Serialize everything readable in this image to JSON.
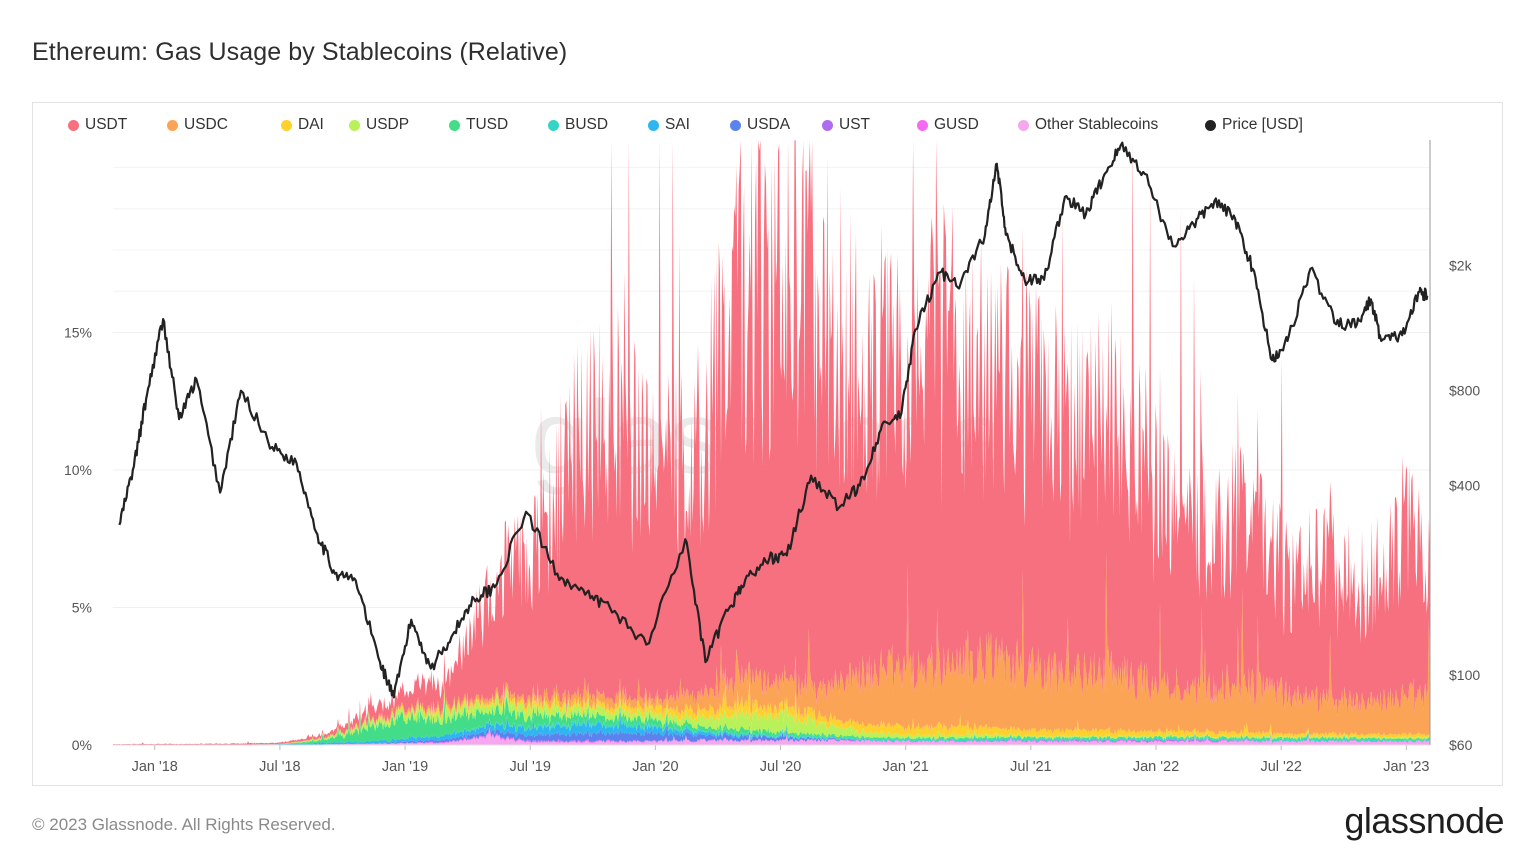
{
  "title": "Ethereum: Gas Usage by Stablecoins (Relative)",
  "footer": "© 2023 Glassnode. All Rights Reserved.",
  "brand": "glassnode",
  "watermark": "glassnode",
  "colors": {
    "USDT": "#f7707f",
    "USDC": "#fba456",
    "DAI": "#ffd12e",
    "USDP": "#b9f15b",
    "TUSD": "#43dd8a",
    "BUSD": "#34d5c4",
    "SAI": "#2eb6f0",
    "USDA": "#5b82ee",
    "UST": "#b06cf0",
    "GUSD": "#f46bf0",
    "Other Stablecoins": "#f6a7ef",
    "Price [USD]": "#222222"
  },
  "chart_data": {
    "type": "area",
    "title": "Ethereum: Gas Usage by Stablecoins (Relative)",
    "legend": [
      "USDT",
      "USDC",
      "DAI",
      "USDP",
      "TUSD",
      "BUSD",
      "SAI",
      "USDA",
      "UST",
      "GUSD",
      "Other Stablecoins",
      "Price [USD]"
    ],
    "legend_position": "top",
    "x_ticks": [
      "Jan '18",
      "Jul '18",
      "Jan '19",
      "Jul '19",
      "Jan '20",
      "Jul '20",
      "Jan '21",
      "Jul '21",
      "Jan '22",
      "Jul '22",
      "Jan '23"
    ],
    "y_left": {
      "ticks": [
        "0%",
        "5%",
        "10%",
        "15%"
      ],
      "values": [
        0,
        5,
        10,
        15
      ],
      "ylim": [
        0,
        22
      ]
    },
    "y_right": {
      "ticks": [
        "$60",
        "$100",
        "$400",
        "$800",
        "$2k"
      ],
      "values": [
        60,
        100,
        400,
        800,
        2000
      ],
      "scale": "log",
      "ylim": [
        60,
        5000
      ]
    },
    "x_range": [
      "2017-11",
      "2023-02"
    ],
    "dates": [
      "Nov '17",
      "Jan '18",
      "Mar '18",
      "May '18",
      "Jul '18",
      "Sep '18",
      "Nov '18",
      "Jan '19",
      "Mar '19",
      "May '19",
      "Jul '19",
      "Sep '19",
      "Nov '19",
      "Jan '20",
      "Mar '20",
      "May '20",
      "Jul '20",
      "Sep '20",
      "Nov '20",
      "Jan '21",
      "Mar '21",
      "May '21",
      "Jul '21",
      "Sep '21",
      "Nov '21",
      "Jan '22",
      "Mar '22",
      "May '22",
      "Jul '22",
      "Sep '22",
      "Nov '22",
      "Jan '23",
      "Feb '23"
    ],
    "series": [
      {
        "name": "USDT",
        "values": [
          0.02,
          0.03,
          0.03,
          0.04,
          0.05,
          0.1,
          0.3,
          0.6,
          1.0,
          3.5,
          5.0,
          9.0,
          10.0,
          8.5,
          9.5,
          13.5,
          15.0,
          14.0,
          11.0,
          10.5,
          11.5,
          10.5,
          9.5,
          9.5,
          9.0,
          7.0,
          6.0,
          6.5,
          4.5,
          5.0,
          4.2,
          6.0,
          3.5
        ]
      },
      {
        "name": "USDC",
        "values": [
          0,
          0,
          0,
          0,
          0.01,
          0.03,
          0.05,
          0.1,
          0.12,
          0.15,
          0.2,
          0.3,
          0.35,
          0.3,
          0.6,
          0.9,
          1.0,
          1.0,
          1.8,
          2.0,
          2.2,
          2.6,
          2.2,
          2.0,
          2.2,
          1.8,
          1.6,
          1.8,
          1.5,
          1.3,
          1.1,
          1.3,
          1.5
        ]
      },
      {
        "name": "DAI",
        "values": [
          0,
          0,
          0,
          0,
          0,
          0,
          0.02,
          0.05,
          0.08,
          0.1,
          0.15,
          0.15,
          0.2,
          0.25,
          0.3,
          0.35,
          0.35,
          0.3,
          0.25,
          0.3,
          0.3,
          0.25,
          0.2,
          0.2,
          0.2,
          0.15,
          0.15,
          0.15,
          0.1,
          0.1,
          0.1,
          0.1,
          0.1
        ]
      },
      {
        "name": "USDP",
        "values": [
          0,
          0,
          0,
          0,
          0,
          0.05,
          0.15,
          0.2,
          0.25,
          0.3,
          0.3,
          0.25,
          0.25,
          0.2,
          0.3,
          0.5,
          0.6,
          0.4,
          0.2,
          0.1,
          0.1,
          0.1,
          0.05,
          0.05,
          0.05,
          0.05,
          0.05,
          0.05,
          0.05,
          0.05,
          0.05,
          0.05,
          0.05
        ]
      },
      {
        "name": "TUSD",
        "values": [
          0,
          0,
          0,
          0,
          0,
          0.1,
          0.4,
          0.8,
          0.6,
          0.5,
          0.4,
          0.3,
          0.25,
          0.2,
          0.15,
          0.15,
          0.1,
          0.08,
          0.05,
          0.05,
          0.05,
          0.05,
          0.05,
          0.05,
          0.05,
          0.05,
          0.05,
          0.05,
          0.05,
          0.05,
          0.05,
          0.05,
          0.05
        ]
      },
      {
        "name": "BUSD",
        "values": [
          0,
          0,
          0,
          0,
          0,
          0,
          0,
          0,
          0,
          0.02,
          0.05,
          0.08,
          0.08,
          0.06,
          0.05,
          0.05,
          0.05,
          0.05,
          0.05,
          0.06,
          0.06,
          0.06,
          0.06,
          0.06,
          0.06,
          0.06,
          0.05,
          0.05,
          0.06,
          0.06,
          0.05,
          0.04,
          0.04
        ]
      },
      {
        "name": "SAI",
        "values": [
          0,
          0,
          0,
          0,
          0.02,
          0.05,
          0.08,
          0.1,
          0.15,
          0.2,
          0.25,
          0.3,
          0.3,
          0.2,
          0.1,
          0.05,
          0.02,
          0.01,
          0,
          0,
          0,
          0,
          0,
          0,
          0,
          0,
          0,
          0,
          0,
          0,
          0,
          0,
          0
        ]
      },
      {
        "name": "USDA",
        "values": [
          0,
          0,
          0,
          0,
          0,
          0,
          0,
          0.05,
          0.1,
          0.15,
          0.2,
          0.25,
          0.3,
          0.25,
          0.2,
          0.15,
          0.1,
          0.05,
          0.02,
          0,
          0,
          0,
          0,
          0,
          0,
          0,
          0,
          0,
          0,
          0,
          0,
          0,
          0
        ]
      },
      {
        "name": "UST",
        "values": [
          0,
          0,
          0,
          0,
          0,
          0,
          0,
          0,
          0,
          0,
          0,
          0,
          0,
          0,
          0,
          0,
          0,
          0,
          0,
          0,
          0.01,
          0.02,
          0.02,
          0.03,
          0.03,
          0.04,
          0.04,
          0.02,
          0,
          0,
          0,
          0,
          0
        ]
      },
      {
        "name": "GUSD",
        "values": [
          0,
          0,
          0,
          0,
          0,
          0,
          0.01,
          0.02,
          0.03,
          0.05,
          0.05,
          0.04,
          0.03,
          0.03,
          0.02,
          0.02,
          0.02,
          0.02,
          0.02,
          0.02,
          0.02,
          0.02,
          0.02,
          0.02,
          0.02,
          0.02,
          0.02,
          0.02,
          0.02,
          0.02,
          0.02,
          0.02,
          0.02
        ]
      },
      {
        "name": "Other Stablecoins",
        "values": [
          0.01,
          0.01,
          0.01,
          0.01,
          0.01,
          0.02,
          0.03,
          0.05,
          0.08,
          0.3,
          0.1,
          0.1,
          0.12,
          0.12,
          0.15,
          0.15,
          0.15,
          0.15,
          0.15,
          0.12,
          0.12,
          0.12,
          0.12,
          0.12,
          0.12,
          0.12,
          0.12,
          0.12,
          0.12,
          0.12,
          0.12,
          0.12,
          0.12
        ]
      }
    ],
    "price_usd": [
      {
        "date": "2017-11-10",
        "value": 300
      },
      {
        "date": "2017-12-01",
        "value": 460
      },
      {
        "date": "2017-12-20",
        "value": 780
      },
      {
        "date": "2018-01-13",
        "value": 1350
      },
      {
        "date": "2018-02-06",
        "value": 650
      },
      {
        "date": "2018-03-01",
        "value": 870
      },
      {
        "date": "2018-04-05",
        "value": 380
      },
      {
        "date": "2018-05-05",
        "value": 800
      },
      {
        "date": "2018-06-20",
        "value": 530
      },
      {
        "date": "2018-07-25",
        "value": 470
      },
      {
        "date": "2018-08-25",
        "value": 280
      },
      {
        "date": "2018-09-20",
        "value": 210
      },
      {
        "date": "2018-10-20",
        "value": 200
      },
      {
        "date": "2018-11-25",
        "value": 110
      },
      {
        "date": "2018-12-15",
        "value": 85
      },
      {
        "date": "2019-01-10",
        "value": 150
      },
      {
        "date": "2019-02-08",
        "value": 105
      },
      {
        "date": "2019-03-10",
        "value": 135
      },
      {
        "date": "2019-04-10",
        "value": 175
      },
      {
        "date": "2019-05-10",
        "value": 190
      },
      {
        "date": "2019-06-25",
        "value": 330
      },
      {
        "date": "2019-08-10",
        "value": 210
      },
      {
        "date": "2019-09-20",
        "value": 180
      },
      {
        "date": "2019-10-25",
        "value": 165
      },
      {
        "date": "2019-12-18",
        "value": 125
      },
      {
        "date": "2020-02-14",
        "value": 270
      },
      {
        "date": "2020-03-13",
        "value": 110
      },
      {
        "date": "2020-04-15",
        "value": 160
      },
      {
        "date": "2020-05-10",
        "value": 200
      },
      {
        "date": "2020-06-15",
        "value": 235
      },
      {
        "date": "2020-07-10",
        "value": 240
      },
      {
        "date": "2020-08-15",
        "value": 430
      },
      {
        "date": "2020-09-25",
        "value": 340
      },
      {
        "date": "2020-10-25",
        "value": 400
      },
      {
        "date": "2020-11-25",
        "value": 600
      },
      {
        "date": "2020-12-25",
        "value": 680
      },
      {
        "date": "2021-01-15",
        "value": 1250
      },
      {
        "date": "2021-02-20",
        "value": 1900
      },
      {
        "date": "2021-03-20",
        "value": 1750
      },
      {
        "date": "2021-04-25",
        "value": 2500
      },
      {
        "date": "2021-05-12",
        "value": 4200
      },
      {
        "date": "2021-05-25",
        "value": 2500
      },
      {
        "date": "2021-06-22",
        "value": 1800
      },
      {
        "date": "2021-07-20",
        "value": 1800
      },
      {
        "date": "2021-08-20",
        "value": 3300
      },
      {
        "date": "2021-09-20",
        "value": 2900
      },
      {
        "date": "2021-10-15",
        "value": 3800
      },
      {
        "date": "2021-11-10",
        "value": 4800
      },
      {
        "date": "2021-12-15",
        "value": 3900
      },
      {
        "date": "2022-01-25",
        "value": 2300
      },
      {
        "date": "2022-02-25",
        "value": 2700
      },
      {
        "date": "2022-03-25",
        "value": 3200
      },
      {
        "date": "2022-04-25",
        "value": 2800
      },
      {
        "date": "2022-05-20",
        "value": 1950
      },
      {
        "date": "2022-06-18",
        "value": 1000
      },
      {
        "date": "2022-07-10",
        "value": 1150
      },
      {
        "date": "2022-08-13",
        "value": 1950
      },
      {
        "date": "2022-09-20",
        "value": 1300
      },
      {
        "date": "2022-10-20",
        "value": 1300
      },
      {
        "date": "2022-11-10",
        "value": 1560
      },
      {
        "date": "2022-11-25",
        "value": 1150
      },
      {
        "date": "2022-12-25",
        "value": 1200
      },
      {
        "date": "2023-01-20",
        "value": 1650
      },
      {
        "date": "2023-01-31",
        "value": 1600
      }
    ]
  }
}
